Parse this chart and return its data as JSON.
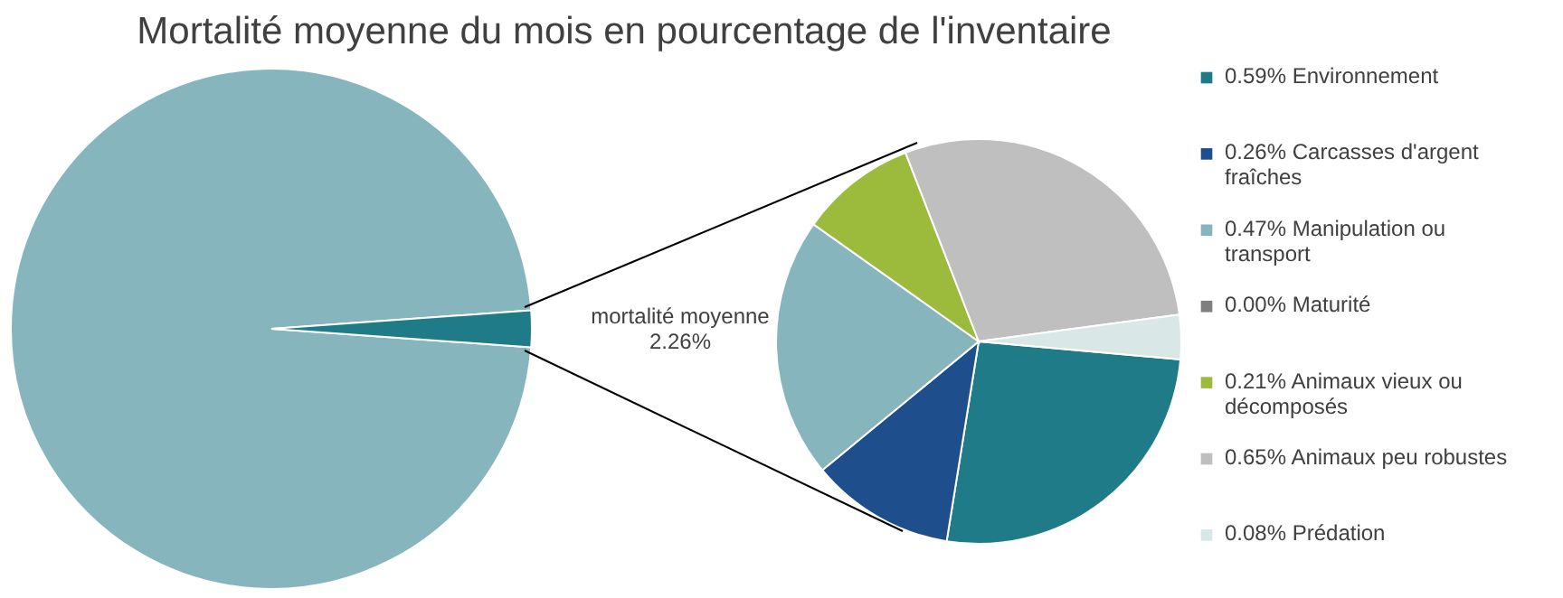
{
  "chart_data": [
    {
      "type": "pie",
      "title": "Mortalité moyenne du mois en pourcentage de l'inventaire",
      "categories": [
        null,
        "mortalité moyenne"
      ],
      "values": [
        97.74,
        2.26
      ],
      "colors": [
        "#86b5bd",
        "#1e7b87"
      ],
      "value_labels": [
        null,
        "2.26%"
      ]
    },
    {
      "type": "pie",
      "categories": [
        "0.59% Environnement",
        "0.26% Carcasses d'argent fraîches",
        "0.47% Manipulation ou transport",
        "0.00% Maturité",
        "0.21% Animaux vieux ou décomposés",
        "0.65% Animaux peu robustes",
        "0.08% Prédation"
      ],
      "values": [
        0.59,
        0.26,
        0.47,
        0.0,
        0.21,
        0.65,
        0.08
      ],
      "colors": [
        "#1e7b87",
        "#1f4e8c",
        "#86b5bd",
        "#7f7f7f",
        "#9cbb3c",
        "#bfbfbf",
        "#d9e8e6"
      ],
      "legend": "right"
    }
  ]
}
